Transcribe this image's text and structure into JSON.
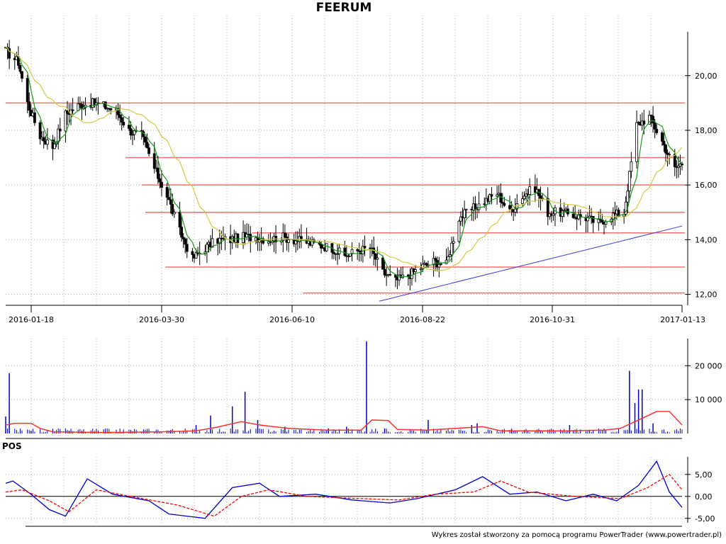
{
  "chart_data": [
    {
      "type": "candlestick",
      "title": "FEERUM",
      "x_tick_labels": [
        "2016-01-18",
        "2016-03-30",
        "2016-06-10",
        "2016-08-22",
        "2016-10-31",
        "2017-01-13"
      ],
      "y_tick_labels": [
        "12,00",
        "14,00",
        "16,00",
        "18,00",
        "20,00"
      ],
      "y_ticks": [
        12,
        14,
        16,
        18,
        20
      ],
      "ylim": [
        11.6,
        21.6
      ],
      "xlim": [
        "2016-01-06",
        "2017-01-13"
      ],
      "grid": true,
      "horizontal_levels": [
        {
          "value": 19.0,
          "from": "2016-01-06"
        },
        {
          "value": 17.0,
          "from": "2016-03-12"
        },
        {
          "value": 16.0,
          "from": "2016-03-21"
        },
        {
          "value": 15.0,
          "from": "2016-03-23"
        },
        {
          "value": 14.25,
          "from": "2016-05-21"
        },
        {
          "value": 13.0,
          "from": "2016-04-03"
        },
        {
          "value": 12.05,
          "from": "2016-06-18"
        }
      ],
      "trendline": {
        "start": {
          "date": "2016-07-30",
          "value": 11.75
        },
        "end": {
          "date": "2017-01-13",
          "value": 14.5
        }
      },
      "close": [
        [
          "2016-01-06",
          20.9
        ],
        [
          "2016-01-13",
          20.5
        ],
        [
          "2016-01-18",
          19.0
        ],
        [
          "2016-01-25",
          17.8
        ],
        [
          "2016-02-01",
          17.4
        ],
        [
          "2016-02-08",
          18.6
        ],
        [
          "2016-02-15",
          18.9
        ],
        [
          "2016-02-22",
          19.0
        ],
        [
          "2016-02-29",
          18.9
        ],
        [
          "2016-03-07",
          18.7
        ],
        [
          "2016-03-14",
          18.0
        ],
        [
          "2016-03-21",
          17.8
        ],
        [
          "2016-03-28",
          16.6
        ],
        [
          "2016-04-04",
          15.6
        ],
        [
          "2016-04-11",
          14.3
        ],
        [
          "2016-04-18",
          13.3
        ],
        [
          "2016-04-25",
          13.7
        ],
        [
          "2016-05-02",
          14.0
        ],
        [
          "2016-05-09",
          14.0
        ],
        [
          "2016-05-16",
          14.1
        ],
        [
          "2016-05-23",
          14.1
        ],
        [
          "2016-05-30",
          14.0
        ],
        [
          "2016-06-06",
          14.1
        ],
        [
          "2016-06-13",
          14.0
        ],
        [
          "2016-06-20",
          13.9
        ],
        [
          "2016-06-27",
          13.8
        ],
        [
          "2016-07-04",
          13.7
        ],
        [
          "2016-07-11",
          13.4
        ],
        [
          "2016-07-18",
          13.6
        ],
        [
          "2016-07-25",
          13.7
        ],
        [
          "2016-08-01",
          12.8
        ],
        [
          "2016-08-08",
          12.5
        ],
        [
          "2016-08-15",
          12.7
        ],
        [
          "2016-08-22",
          13.0
        ],
        [
          "2016-08-29",
          13.2
        ],
        [
          "2016-09-05",
          13.1
        ],
        [
          "2016-09-12",
          14.8
        ],
        [
          "2016-09-19",
          15.1
        ],
        [
          "2016-09-26",
          15.4
        ],
        [
          "2016-10-03",
          15.7
        ],
        [
          "2016-10-10",
          15.0
        ],
        [
          "2016-10-17",
          15.6
        ],
        [
          "2016-10-24",
          15.9
        ],
        [
          "2016-10-31",
          15.0
        ],
        [
          "2016-11-07",
          15.0
        ],
        [
          "2016-11-14",
          14.9
        ],
        [
          "2016-11-21",
          14.8
        ],
        [
          "2016-11-28",
          14.6
        ],
        [
          "2016-12-05",
          14.9
        ],
        [
          "2016-12-12",
          15.0
        ],
        [
          "2016-12-19",
          18.2
        ],
        [
          "2016-12-26",
          18.5
        ],
        [
          "2017-01-02",
          17.6
        ],
        [
          "2017-01-09",
          16.6
        ],
        [
          "2017-01-13",
          16.8
        ]
      ]
    },
    {
      "type": "bar",
      "name": "volume",
      "y_tick_labels": [
        "10 000",
        "20 000"
      ],
      "y_ticks": [
        10000,
        20000
      ],
      "ylim": [
        0,
        28000
      ],
      "spikes": [
        [
          "2016-01-06",
          5000
        ],
        [
          "2016-01-08",
          17800
        ],
        [
          "2016-01-20",
          800
        ],
        [
          "2016-02-10",
          800
        ],
        [
          "2016-04-06",
          1000
        ],
        [
          "2016-04-20",
          2500
        ],
        [
          "2016-04-28",
          5300
        ],
        [
          "2016-05-10",
          8000
        ],
        [
          "2016-05-17",
          12300
        ],
        [
          "2016-05-24",
          4000
        ],
        [
          "2016-06-08",
          2000
        ],
        [
          "2016-07-02",
          1500
        ],
        [
          "2016-07-12",
          2000
        ],
        [
          "2016-07-23",
          27200
        ],
        [
          "2016-08-02",
          1500
        ],
        [
          "2016-08-26",
          4000
        ],
        [
          "2016-09-19",
          2500
        ],
        [
          "2016-09-22",
          3000
        ],
        [
          "2016-10-11",
          1200
        ],
        [
          "2016-11-12",
          2500
        ],
        [
          "2016-12-15",
          18500
        ],
        [
          "2016-12-18",
          9000
        ],
        [
          "2016-12-20",
          13000
        ],
        [
          "2016-12-22",
          13000
        ],
        [
          "2016-12-28",
          3000
        ]
      ],
      "average": [
        [
          "2016-01-06",
          2500
        ],
        [
          "2016-01-11",
          3000
        ],
        [
          "2016-01-20",
          3000
        ],
        [
          "2016-01-25",
          1500
        ],
        [
          "2016-02-01",
          500
        ],
        [
          "2016-03-01",
          300
        ],
        [
          "2016-04-01",
          500
        ],
        [
          "2016-04-20",
          800
        ],
        [
          "2016-05-01",
          1800
        ],
        [
          "2016-05-15",
          3500
        ],
        [
          "2016-05-25",
          2500
        ],
        [
          "2016-06-10",
          1500
        ],
        [
          "2016-07-01",
          1000
        ],
        [
          "2016-07-20",
          1000
        ],
        [
          "2016-07-26",
          4000
        ],
        [
          "2016-08-04",
          3800
        ],
        [
          "2016-08-09",
          1200
        ],
        [
          "2016-08-25",
          1000
        ],
        [
          "2016-09-10",
          1500
        ],
        [
          "2016-09-25",
          2000
        ],
        [
          "2016-10-05",
          800
        ],
        [
          "2016-11-10",
          800
        ],
        [
          "2016-12-01",
          1000
        ],
        [
          "2016-12-10",
          1500
        ],
        [
          "2016-12-20",
          4000
        ],
        [
          "2016-12-30",
          6500
        ],
        [
          "2017-01-06",
          6500
        ],
        [
          "2017-01-13",
          2500
        ]
      ]
    },
    {
      "type": "line",
      "name": "POS",
      "title": "POS",
      "y_tick_labels": [
        "-5,00",
        "0,00",
        "5,00"
      ],
      "y_ticks": [
        -5,
        0,
        5
      ],
      "ylim": [
        -6,
        9
      ],
      "series": [
        {
          "color": "#0000cc",
          "points": [
            [
              "2016-01-06",
              3.0
            ],
            [
              "2016-01-10",
              3.5
            ],
            [
              "2016-01-20",
              0.5
            ],
            [
              "2016-01-30",
              -3.0
            ],
            [
              "2016-02-08",
              -4.5
            ],
            [
              "2016-02-20",
              4.0
            ],
            [
              "2016-03-05",
              0.5
            ],
            [
              "2016-03-25",
              -1.0
            ],
            [
              "2016-04-05",
              -4.0
            ],
            [
              "2016-04-25",
              -5.0
            ],
            [
              "2016-05-10",
              2.0
            ],
            [
              "2016-05-25",
              3.0
            ],
            [
              "2016-06-05",
              0.0
            ],
            [
              "2016-06-25",
              0.5
            ],
            [
              "2016-07-15",
              -0.8
            ],
            [
              "2016-08-05",
              -1.5
            ],
            [
              "2016-08-20",
              -0.5
            ],
            [
              "2016-09-10",
              1.5
            ],
            [
              "2016-09-25",
              4.5
            ],
            [
              "2016-10-10",
              0.5
            ],
            [
              "2016-10-25",
              1.0
            ],
            [
              "2016-11-10",
              -1.0
            ],
            [
              "2016-11-25",
              0.5
            ],
            [
              "2016-12-08",
              -1.0
            ],
            [
              "2016-12-20",
              2.5
            ],
            [
              "2016-12-30",
              8.0
            ],
            [
              "2017-01-06",
              1.0
            ],
            [
              "2017-01-13",
              -2.5
            ]
          ]
        },
        {
          "color": "#ff0000",
          "dashed": true,
          "points": [
            [
              "2016-01-06",
              1.0
            ],
            [
              "2016-01-15",
              1.5
            ],
            [
              "2016-01-30",
              -1.0
            ],
            [
              "2016-02-10",
              -3.5
            ],
            [
              "2016-02-25",
              1.5
            ],
            [
              "2016-03-15",
              0.0
            ],
            [
              "2016-04-10",
              -2.0
            ],
            [
              "2016-04-30",
              -4.5
            ],
            [
              "2016-05-15",
              0.0
            ],
            [
              "2016-05-30",
              1.5
            ],
            [
              "2016-06-20",
              0.0
            ],
            [
              "2016-07-20",
              -0.5
            ],
            [
              "2016-08-10",
              -0.8
            ],
            [
              "2016-08-30",
              0.5
            ],
            [
              "2016-09-20",
              1.0
            ],
            [
              "2016-10-05",
              3.5
            ],
            [
              "2016-10-20",
              1.0
            ],
            [
              "2016-11-15",
              0.0
            ],
            [
              "2016-12-10",
              -0.5
            ],
            [
              "2016-12-25",
              2.0
            ],
            [
              "2017-01-06",
              5.0
            ],
            [
              "2017-01-13",
              1.5
            ]
          ]
        }
      ]
    }
  ],
  "credit": "Wykres został stworzony za pomocą programu PowerTrader (www.powertrader.pl)"
}
